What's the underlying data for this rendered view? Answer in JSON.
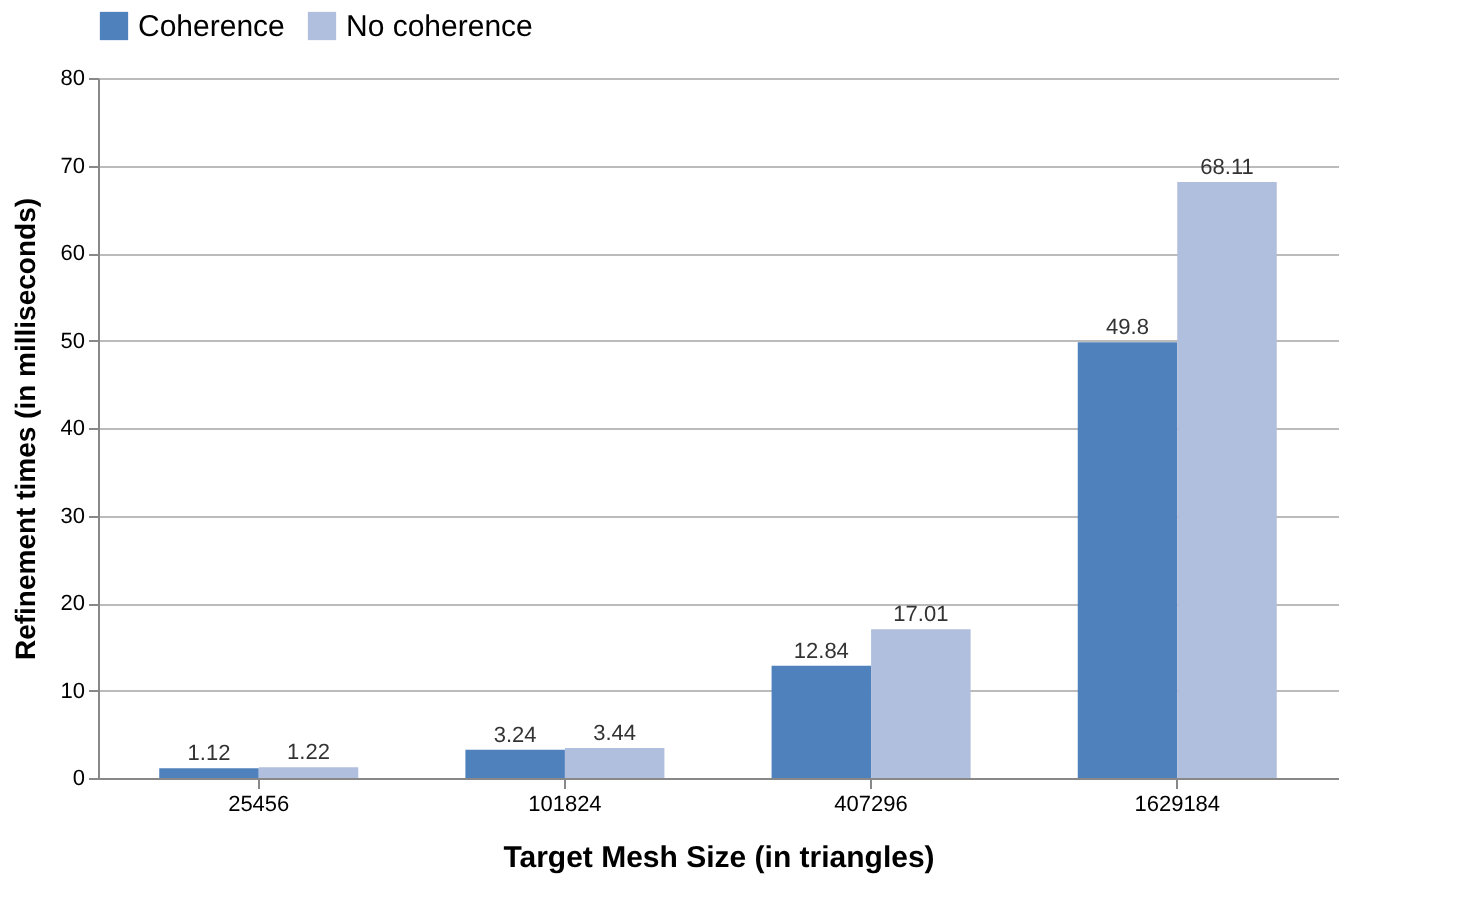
{
  "chart_data": {
    "type": "bar",
    "xlabel": "Target Mesh Size (in triangles)",
    "ylabel": "Refinement times (in milliseconds)",
    "categories": [
      "25456",
      "101824",
      "407296",
      "1629184"
    ],
    "series": [
      {
        "name": "Coherence",
        "color": "#4f81bd",
        "values": [
          1.12,
          3.24,
          12.84,
          49.8
        ]
      },
      {
        "name": "No coherence",
        "color": "#b0bfdd",
        "values": [
          1.22,
          3.44,
          17.01,
          68.11
        ]
      }
    ],
    "ylim": [
      0,
      80
    ],
    "yticks": [
      0,
      10,
      20,
      30,
      40,
      50,
      60,
      70,
      80
    ],
    "grid": "y",
    "legend": "top",
    "data_labels": true
  }
}
